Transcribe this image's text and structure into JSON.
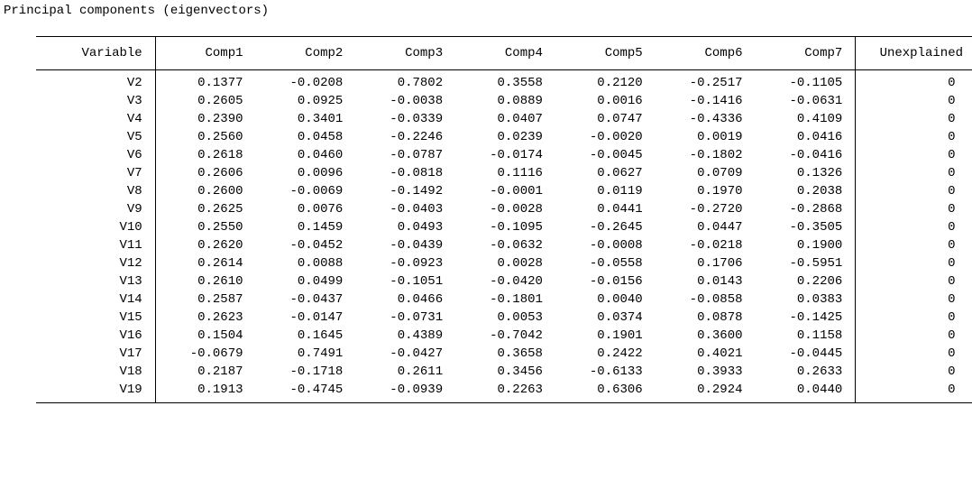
{
  "title": "Principal components (eigenvectors)",
  "columns": [
    "Variable",
    "Comp1",
    "Comp2",
    "Comp3",
    "Comp4",
    "Comp5",
    "Comp6",
    "Comp7",
    "Unexplained"
  ],
  "rows": [
    [
      "V2",
      "0.1377",
      "-0.0208",
      "0.7802",
      "0.3558",
      "0.2120",
      "-0.2517",
      "-0.1105",
      "0"
    ],
    [
      "V3",
      "0.2605",
      "0.0925",
      "-0.0038",
      "0.0889",
      "0.0016",
      "-0.1416",
      "-0.0631",
      "0"
    ],
    [
      "V4",
      "0.2390",
      "0.3401",
      "-0.0339",
      "0.0407",
      "0.0747",
      "-0.4336",
      "0.4109",
      "0"
    ],
    [
      "V5",
      "0.2560",
      "0.0458",
      "-0.2246",
      "0.0239",
      "-0.0020",
      "0.0019",
      "0.0416",
      "0"
    ],
    [
      "V6",
      "0.2618",
      "0.0460",
      "-0.0787",
      "-0.0174",
      "-0.0045",
      "-0.1802",
      "-0.0416",
      "0"
    ],
    [
      "V7",
      "0.2606",
      "0.0096",
      "-0.0818",
      "0.1116",
      "0.0627",
      "0.0709",
      "0.1326",
      "0"
    ],
    [
      "V8",
      "0.2600",
      "-0.0069",
      "-0.1492",
      "-0.0001",
      "0.0119",
      "0.1970",
      "0.2038",
      "0"
    ],
    [
      "V9",
      "0.2625",
      "0.0076",
      "-0.0403",
      "-0.0028",
      "0.0441",
      "-0.2720",
      "-0.2868",
      "0"
    ],
    [
      "V10",
      "0.2550",
      "0.1459",
      "0.0493",
      "-0.1095",
      "-0.2645",
      "0.0447",
      "-0.3505",
      "0"
    ],
    [
      "V11",
      "0.2620",
      "-0.0452",
      "-0.0439",
      "-0.0632",
      "-0.0008",
      "-0.0218",
      "0.1900",
      "0"
    ],
    [
      "V12",
      "0.2614",
      "0.0088",
      "-0.0923",
      "0.0028",
      "-0.0558",
      "0.1706",
      "-0.5951",
      "0"
    ],
    [
      "V13",
      "0.2610",
      "0.0499",
      "-0.1051",
      "-0.0420",
      "-0.0156",
      "0.0143",
      "0.2206",
      "0"
    ],
    [
      "V14",
      "0.2587",
      "-0.0437",
      "0.0466",
      "-0.1801",
      "0.0040",
      "-0.0858",
      "0.0383",
      "0"
    ],
    [
      "V15",
      "0.2623",
      "-0.0147",
      "-0.0731",
      "0.0053",
      "0.0374",
      "0.0878",
      "-0.1425",
      "0"
    ],
    [
      "V16",
      "0.1504",
      "0.1645",
      "0.4389",
      "-0.7042",
      "0.1901",
      "0.3600",
      "0.1158",
      "0"
    ],
    [
      "V17",
      "-0.0679",
      "0.7491",
      "-0.0427",
      "0.3658",
      "0.2422",
      "0.4021",
      "-0.0445",
      "0"
    ],
    [
      "V18",
      "0.2187",
      "-0.1718",
      "0.2611",
      "0.3456",
      "-0.6133",
      "0.3933",
      "0.2633",
      "0"
    ],
    [
      "V19",
      "0.1913",
      "-0.4745",
      "-0.0939",
      "0.2263",
      "0.6306",
      "0.2924",
      "0.0440",
      "0"
    ]
  ]
}
